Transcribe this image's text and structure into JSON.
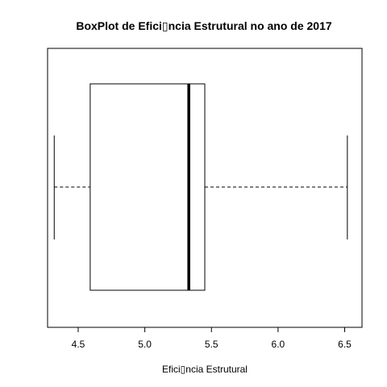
{
  "chart_data": {
    "type": "boxplot",
    "orientation": "horizontal",
    "title": "BoxPlot de Efici▯ncia Estrutural no ano de 2017",
    "xlabel": "Efici▯ncia Estrutural",
    "ylabel": "",
    "xlim": [
      4.27,
      6.63
    ],
    "x_ticks": [
      4.5,
      5.0,
      5.5,
      6.0,
      6.5
    ],
    "x_tick_labels": [
      "4.5",
      "5.0",
      "5.5",
      "6.0",
      "6.5"
    ],
    "box": {
      "min": 4.32,
      "q1": 4.59,
      "median": 5.33,
      "q3": 5.45,
      "max": 6.52
    },
    "grid": false,
    "legend": "none",
    "colors": {
      "stroke": "#000000",
      "background": "#ffffff",
      "box_fill": "#ffffff"
    }
  }
}
